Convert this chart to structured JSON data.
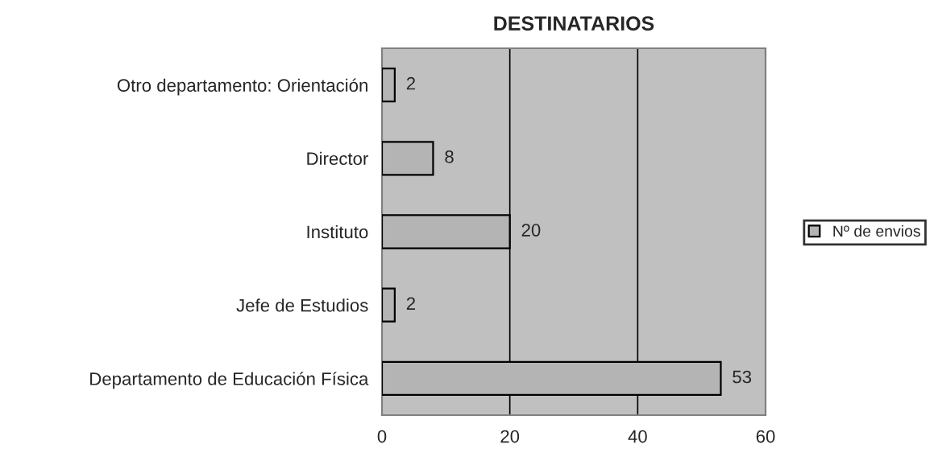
{
  "chart_data": {
    "type": "bar",
    "title": "DESTINATARIOS",
    "orientation": "horizontal",
    "categories": [
      "Otro departamento: Orientación",
      "Director",
      "Instituto",
      "Jefe de Estudios",
      "Departamento de Educación Física"
    ],
    "series": [
      {
        "name": "Nº de envios",
        "color": "#b4b4b4",
        "values": [
          2,
          8,
          20,
          2,
          53
        ]
      }
    ],
    "xlim": [
      0,
      60
    ],
    "xticks": [
      0,
      20,
      40,
      60
    ],
    "grid": "x",
    "legend": "right",
    "data_labels": true
  }
}
